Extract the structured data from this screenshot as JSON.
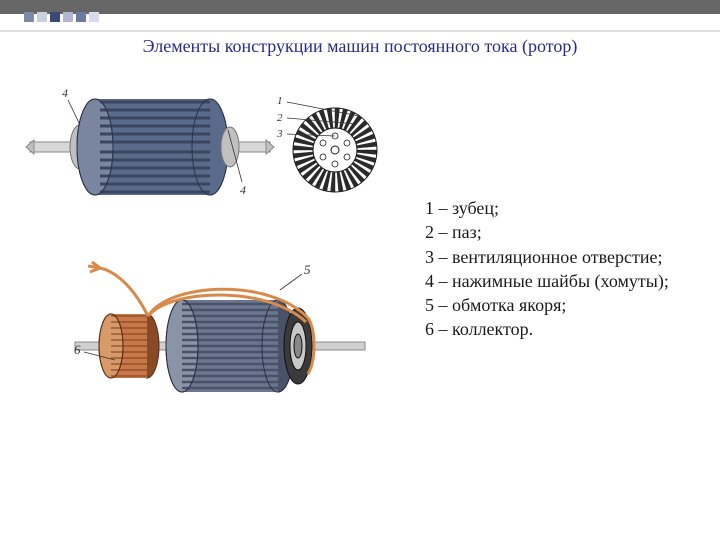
{
  "header": {
    "square_colors": [
      "#7a8aa8",
      "#c8d0e0",
      "#3a4a78",
      "#b0b8d0",
      "#6a7aa0",
      "#d8dce8"
    ]
  },
  "title": "Элементы конструкции машин постоянного тока (ротор)",
  "legend": [
    {
      "num": "1",
      "text": "зубец;"
    },
    {
      "num": "2",
      "text": "паз;"
    },
    {
      "num": "3",
      "text": "вентиляционное отверстие;"
    },
    {
      "num": "4",
      "text": "нажимные шайбы (хомуты);"
    },
    {
      "num": "5",
      "text": "обмотка якоря;"
    },
    {
      "num": "6",
      "text": "коллектор."
    }
  ],
  "figures": {
    "top": {
      "rotor_body_color": "#5a6a8a",
      "rotor_slot_color": "#3a4560",
      "shaft_color": "#d8d8d8",
      "hub_color": "#c0c0c0",
      "lamination_fill": "#2a2a2a",
      "lamination_stroke": "#1a1a1a",
      "callout_labels": [
        "1",
        "2",
        "3",
        "4",
        "4"
      ]
    },
    "bottom": {
      "core_color": "#6a7690",
      "core_slot_color": "#4a5268",
      "shaft_color": "#d0d0d0",
      "commutator_bar_color": "#c87848",
      "commutator_dark": "#8a4a28",
      "end_ring_color": "#3a3a3a",
      "winding_color": "#d88a4a",
      "callout_labels": [
        "5",
        "6"
      ]
    }
  }
}
